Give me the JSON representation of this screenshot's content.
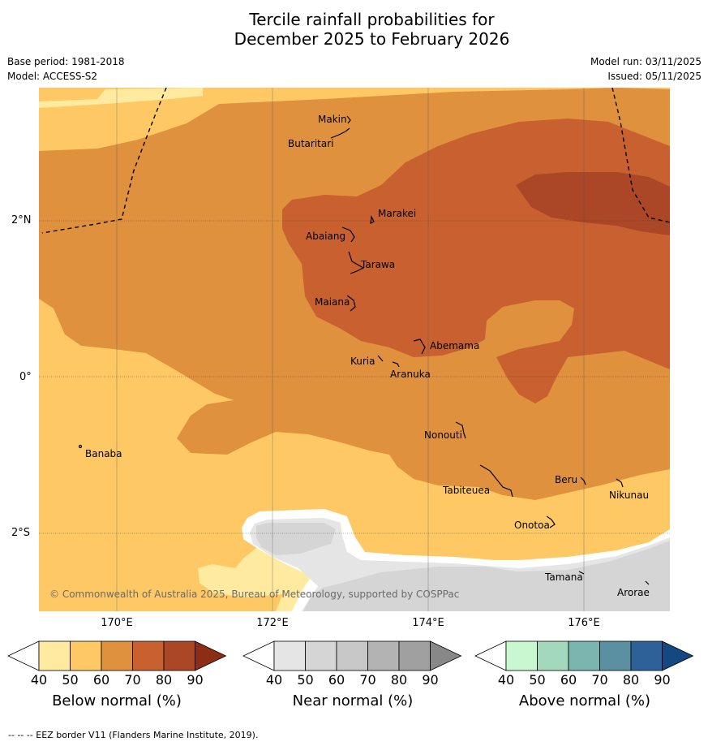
{
  "title": {
    "line1": "Tercile rainfall probabilities for",
    "line2": "December 2025 to February 2026"
  },
  "meta": {
    "base_period": "Base period: 1981-2018",
    "model": "Model: ACCESS-S2",
    "model_run": "Model run: 03/11/2025",
    "issued": "Issued: 05/11/2025"
  },
  "map": {
    "lat_labels": [
      "2°N",
      "0°",
      "2°S"
    ],
    "lon_labels": [
      "170°E",
      "172°E",
      "174°E",
      "176°E"
    ],
    "copyright": "© Commonwealth of Australia 2025, Bureau of Meteorology, supported by COSPPac",
    "islands": [
      "Makin",
      "Butaritari",
      "Marakei",
      "Abaiang",
      "Tarawa",
      "Maiana",
      "Abemama",
      "Kuria",
      "Aranuka",
      "Nonouti",
      "Banaba",
      "Tabiteuea",
      "Beru",
      "Nikunau",
      "Onotoa",
      "Tamana",
      "Arorae"
    ]
  },
  "colorbars": {
    "ticks": [
      "40",
      "50",
      "60",
      "70",
      "80",
      "90"
    ],
    "below": {
      "label": "Below normal (%)",
      "colors": [
        "#ffffff",
        "#ffeaa0",
        "#fec965",
        "#e0913e",
        "#c86030",
        "#ab4626",
        "#8c2d15"
      ]
    },
    "near": {
      "label": "Near normal (%)",
      "colors": [
        "#ffffff",
        "#e5e5e5",
        "#d5d5d5",
        "#c8c8c8",
        "#b3b3b3",
        "#a0a0a0",
        "#888888"
      ]
    },
    "above": {
      "label": "Above normal (%)",
      "colors": [
        "#ffffff",
        "#c9f7cf",
        "#a3d8bd",
        "#7ab5b0",
        "#5a90a1",
        "#2e6198",
        "#134883"
      ]
    }
  },
  "footnote": "--  --  -- EEZ border V11 (Flanders Marine Institute, 2019)."
}
